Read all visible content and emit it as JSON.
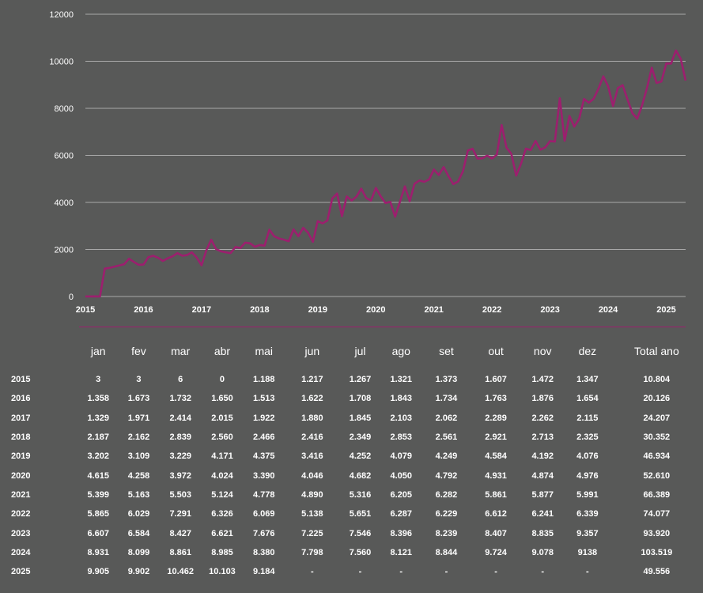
{
  "colors": {
    "background": "#585958",
    "line": "#9c1f6e",
    "grid": "#a9a9a9",
    "text": "#ffffff"
  },
  "chart_data": {
    "type": "line",
    "series": [
      {
        "values": [
          3,
          3,
          6,
          0,
          1188,
          1217,
          1267,
          1321,
          1373,
          1607,
          1472,
          1347,
          1358,
          1673,
          1732,
          1650,
          1513,
          1622,
          1708,
          1843,
          1734,
          1763,
          1876,
          1654,
          1329,
          1971,
          2414,
          2015,
          1922,
          1880,
          1845,
          2103,
          2062,
          2289,
          2262,
          2115,
          2187,
          2162,
          2839,
          2560,
          2466,
          2416,
          2349,
          2853,
          2561,
          2921,
          2713,
          2325,
          3202,
          3109,
          3229,
          4171,
          4375,
          3416,
          4252,
          4079,
          4249,
          4584,
          4192,
          4076,
          4615,
          4258,
          3972,
          4024,
          3390,
          4046,
          4682,
          4050,
          4792,
          4931,
          4874,
          4976,
          5399,
          5163,
          5503,
          5124,
          4778,
          4890,
          5316,
          6205,
          6282,
          5861,
          5877,
          5991,
          5865,
          6029,
          7291,
          6326,
          6069,
          5138,
          5651,
          6287,
          6229,
          6612,
          6241,
          6339,
          6607,
          6584,
          8427,
          6621,
          7676,
          7225,
          7546,
          8396,
          8239,
          8407,
          8835,
          9357,
          8931,
          8099,
          8861,
          8985,
          8380,
          7798,
          7560,
          8121,
          8844,
          9724,
          9078,
          9138,
          9905,
          9902,
          10462,
          10103,
          9184
        ]
      }
    ],
    "y_ticks": [
      "0",
      "2000",
      "4000",
      "6000",
      "8000",
      "10000",
      "12000"
    ],
    "ylim": [
      0,
      12000
    ],
    "x_ticks": [
      "2015",
      "2016",
      "2017",
      "2018",
      "2019",
      "2020",
      "2021",
      "2022",
      "2023",
      "2024",
      "2025"
    ],
    "grid": "horizontal"
  },
  "table": {
    "headers": [
      "jan",
      "fev",
      "mar",
      "abr",
      "mai",
      "jun",
      "jul",
      "ago",
      "set",
      "out",
      "nov",
      "dez",
      "Total ano"
    ],
    "rows": [
      {
        "year": "2015",
        "cells": [
          "3",
          "3",
          "6",
          "0",
          "1.188",
          "1.217",
          "1.267",
          "1.321",
          "1.373",
          "1.607",
          "1.472",
          "1.347",
          "10.804"
        ]
      },
      {
        "year": "2016",
        "cells": [
          "1.358",
          "1.673",
          "1.732",
          "1.650",
          "1.513",
          "1.622",
          "1.708",
          "1.843",
          "1.734",
          "1.763",
          "1.876",
          "1.654",
          "20.126"
        ]
      },
      {
        "year": "2017",
        "cells": [
          "1.329",
          "1.971",
          "2.414",
          "2.015",
          "1.922",
          "1.880",
          "1.845",
          "2.103",
          "2.062",
          "2.289",
          "2.262",
          "2.115",
          "24.207"
        ]
      },
      {
        "year": "2018",
        "cells": [
          "2.187",
          "2.162",
          "2.839",
          "2.560",
          "2.466",
          "2.416",
          "2.349",
          "2.853",
          "2.561",
          "2.921",
          "2.713",
          "2.325",
          "30.352"
        ]
      },
      {
        "year": "2019",
        "cells": [
          "3.202",
          "3.109",
          "3.229",
          "4.171",
          "4.375",
          "3.416",
          "4.252",
          "4.079",
          "4.249",
          "4.584",
          "4.192",
          "4.076",
          "46.934"
        ]
      },
      {
        "year": "2020",
        "cells": [
          "4.615",
          "4.258",
          "3.972",
          "4.024",
          "3.390",
          "4.046",
          "4.682",
          "4.050",
          "4.792",
          "4.931",
          "4.874",
          "4.976",
          "52.610"
        ]
      },
      {
        "year": "2021",
        "cells": [
          "5.399",
          "5.163",
          "5.503",
          "5.124",
          "4.778",
          "4.890",
          "5.316",
          "6.205",
          "6.282",
          "5.861",
          "5.877",
          "5.991",
          "66.389"
        ]
      },
      {
        "year": "2022",
        "cells": [
          "5.865",
          "6.029",
          "7.291",
          "6.326",
          "6.069",
          "5.138",
          "5.651",
          "6.287",
          "6.229",
          "6.612",
          "6.241",
          "6.339",
          "74.077"
        ]
      },
      {
        "year": "2023",
        "cells": [
          "6.607",
          "6.584",
          "8.427",
          "6.621",
          "7.676",
          "7.225",
          "7.546",
          "8.396",
          "8.239",
          "8.407",
          "8.835",
          "9.357",
          "93.920"
        ]
      },
      {
        "year": "2024",
        "cells": [
          "8.931",
          "8.099",
          "8.861",
          "8.985",
          "8.380",
          "7.798",
          "7.560",
          "8.121",
          "8.844",
          "9.724",
          "9.078",
          "9138",
          "103.519"
        ]
      },
      {
        "year": "2025",
        "cells": [
          "9.905",
          "9.902",
          "10.462",
          "10.103",
          "9.184",
          "-",
          "-",
          "-",
          "-",
          "-",
          "-",
          "-",
          "49.556"
        ]
      }
    ]
  }
}
